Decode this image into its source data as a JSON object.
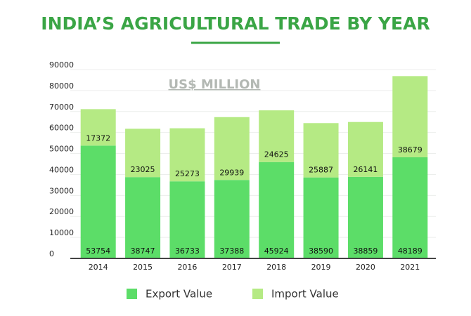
{
  "chart_data": {
    "type": "bar",
    "stacked": true,
    "title": "INDIA’S AGRICULTURAL TRADE BY YEAR",
    "subtitle": "US$ MILLION",
    "categories": [
      "2014",
      "2015",
      "2016",
      "2017",
      "2018",
      "2019",
      "2020",
      "2021"
    ],
    "series": [
      {
        "name": "Export Value",
        "color": "#5cdd68",
        "values": [
          53754,
          38747,
          36733,
          37388,
          45924,
          38590,
          38859,
          48189
        ]
      },
      {
        "name": "Import Value",
        "color": "#b5ea84",
        "values": [
          17372,
          23025,
          25273,
          29939,
          24625,
          25887,
          26141,
          38679
        ]
      }
    ],
    "ylim": [
      0,
      90000
    ],
    "yticks": [
      0,
      10000,
      20000,
      30000,
      40000,
      50000,
      60000,
      70000,
      80000,
      90000
    ],
    "grid": true,
    "legend": "bottom"
  }
}
